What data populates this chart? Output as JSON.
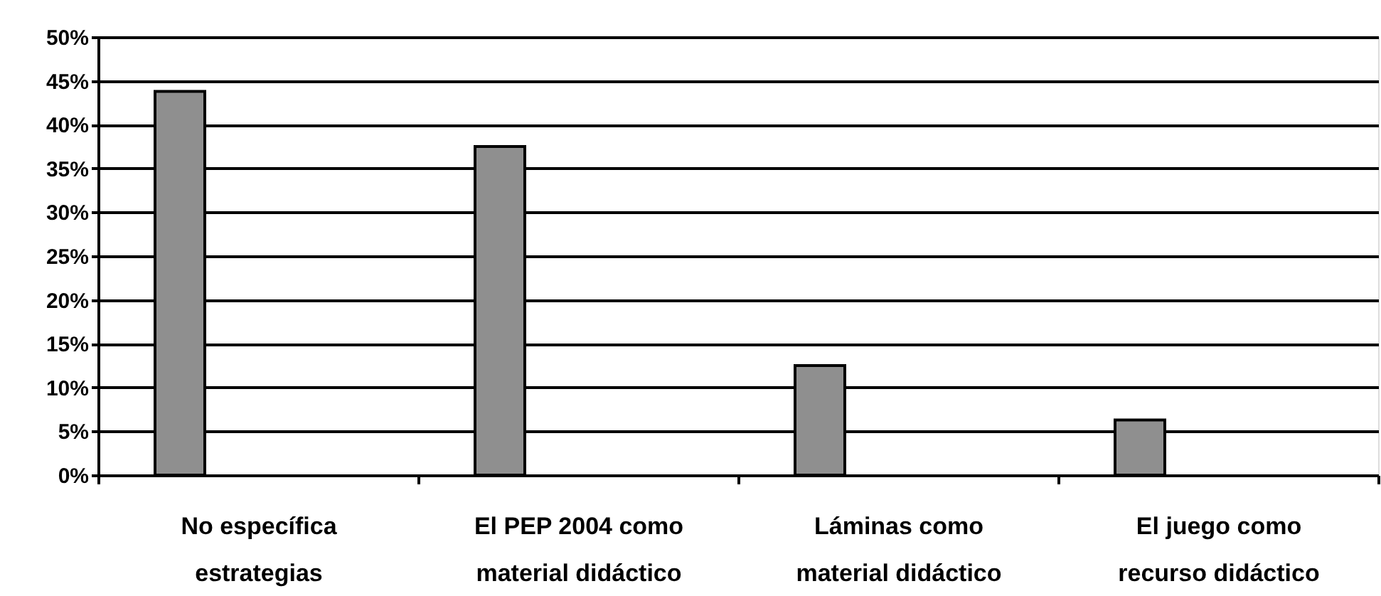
{
  "chart_data": {
    "type": "bar",
    "categories": [
      "No específica estrategias",
      "El PEP 2004 como material didáctico",
      "Láminas como material didáctico",
      "El juego como recurso didáctico"
    ],
    "values": [
      43.8,
      37.5,
      12.5,
      6.3
    ],
    "color": "#8f8f8f",
    "ylim": [
      0,
      50
    ],
    "yticks": [
      {
        "value": 0,
        "label": "0%"
      },
      {
        "value": 5,
        "label": "5%"
      },
      {
        "value": 10,
        "label": "10%"
      },
      {
        "value": 15,
        "label": "15%"
      },
      {
        "value": 20,
        "label": "20%"
      },
      {
        "value": 25,
        "label": "25%"
      },
      {
        "value": 30,
        "label": "30%"
      },
      {
        "value": 35,
        "label": "35%"
      },
      {
        "value": 40,
        "label": "40%"
      },
      {
        "value": 45,
        "label": "45%"
      },
      {
        "value": 50,
        "label": "50%"
      }
    ],
    "grid": "y"
  }
}
